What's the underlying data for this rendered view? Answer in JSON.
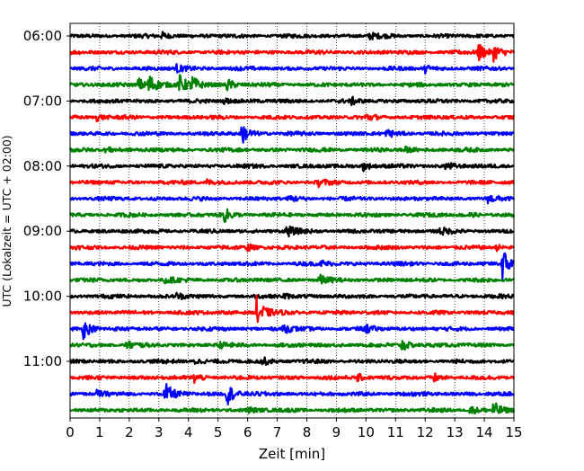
{
  "chart_data": {
    "type": "line",
    "subtype": "seismic helicorder",
    "title": "",
    "xlabel": "Zeit  [min]",
    "ylabel": "UTC (Lokalzeit = UTC + 02:00)",
    "xlim": [
      0,
      15
    ],
    "x_ticks": [
      0,
      1,
      2,
      3,
      4,
      5,
      6,
      7,
      8,
      9,
      10,
      11,
      12,
      13,
      14,
      15
    ],
    "x_tick_labels": [
      "0",
      "1",
      "2",
      "3",
      "4",
      "5",
      "6",
      "7",
      "8",
      "9",
      "10",
      "11",
      "12",
      "13",
      "14",
      "15"
    ],
    "y_tick_labels": [
      "06:00",
      "07:00",
      "08:00",
      "09:00",
      "10:00",
      "11:00"
    ],
    "line_interval_minutes": 15,
    "start_time": "06:00",
    "grid": "vertical dotted",
    "legend": "none",
    "colors_cycle": [
      "#000000",
      "#ff0000",
      "#0000ff",
      "#008000"
    ],
    "traces": [
      {
        "start": "06:00",
        "color": "#000000",
        "events": [
          {
            "t": 3.1,
            "amp": 0.35
          },
          {
            "t": 10.1,
            "amp": 0.35
          }
        ]
      },
      {
        "start": "06:15",
        "color": "#ff0000",
        "events": [
          {
            "t": 13.8,
            "amp": 0.9
          },
          {
            "t": 14.3,
            "amp": 0.8
          }
        ]
      },
      {
        "start": "06:30",
        "color": "#0000ff",
        "events": [
          {
            "t": 3.6,
            "amp": 0.35
          },
          {
            "t": 12,
            "amp": 0.35
          }
        ]
      },
      {
        "start": "06:45",
        "color": "#008000",
        "events": [
          {
            "t": 2.3,
            "amp": 0.7
          },
          {
            "t": 2.65,
            "amp": 1.1
          },
          {
            "t": 3.7,
            "amp": 0.9
          },
          {
            "t": 4.1,
            "amp": 0.85
          },
          {
            "t": 5.3,
            "amp": 0.6
          }
        ]
      },
      {
        "start": "07:00",
        "color": "#000000",
        "events": [
          {
            "t": 5.2,
            "amp": 0.3
          },
          {
            "t": 9.5,
            "amp": 0.3
          }
        ]
      },
      {
        "start": "07:15",
        "color": "#ff0000",
        "events": [
          {
            "t": 0.9,
            "amp": 0.35
          },
          {
            "t": 10,
            "amp": 0.3
          }
        ]
      },
      {
        "start": "07:30",
        "color": "#0000ff",
        "events": [
          {
            "t": 5.8,
            "amp": 1.0
          },
          {
            "t": 10.7,
            "amp": 0.35
          }
        ]
      },
      {
        "start": "07:45",
        "color": "#008000",
        "events": [
          {
            "t": 1.2,
            "amp": 0.35
          },
          {
            "t": 11.2,
            "amp": 0.35
          }
        ]
      },
      {
        "start": "08:00",
        "color": "#000000",
        "events": [
          {
            "t": 9.9,
            "amp": 0.45
          },
          {
            "t": 12.7,
            "amp": 0.4
          }
        ]
      },
      {
        "start": "08:15",
        "color": "#ff0000",
        "events": [
          {
            "t": 4.6,
            "amp": 0.3
          },
          {
            "t": 8.4,
            "amp": 0.3
          }
        ]
      },
      {
        "start": "08:30",
        "color": "#0000ff",
        "events": [
          {
            "t": 7.4,
            "amp": 0.35
          },
          {
            "t": 14.1,
            "amp": 0.35
          }
        ]
      },
      {
        "start": "08:45",
        "color": "#008000",
        "events": [
          {
            "t": 5.2,
            "amp": 0.7
          },
          {
            "t": 13.3,
            "amp": 0.3
          }
        ]
      },
      {
        "start": "09:00",
        "color": "#000000",
        "events": [
          {
            "t": 7.3,
            "amp": 0.6
          },
          {
            "t": 12.5,
            "amp": 0.35
          }
        ]
      },
      {
        "start": "09:15",
        "color": "#ff0000",
        "events": [
          {
            "t": 14.4,
            "amp": 0.3
          },
          {
            "t": 6,
            "amp": 0.3
          }
        ]
      },
      {
        "start": "09:30",
        "color": "#0000ff",
        "events": [
          {
            "t": 14.6,
            "amp": 1.7
          },
          {
            "t": 8.5,
            "amp": 0.3
          }
        ]
      },
      {
        "start": "09:45",
        "color": "#008000",
        "events": [
          {
            "t": 8.4,
            "amp": 0.5
          },
          {
            "t": 3.2,
            "amp": 0.35
          }
        ]
      },
      {
        "start": "10:00",
        "color": "#000000",
        "events": [
          {
            "t": 3.6,
            "amp": 0.35
          },
          {
            "t": 7.2,
            "amp": 0.3
          }
        ]
      },
      {
        "start": "10:15",
        "color": "#ff0000",
        "events": [
          {
            "t": 6.3,
            "amp": 1.6
          }
        ]
      },
      {
        "start": "10:30",
        "color": "#0000ff",
        "events": [
          {
            "t": 0.45,
            "amp": 1.0
          },
          {
            "t": 7.2,
            "amp": 0.5
          },
          {
            "t": 10,
            "amp": 0.35
          }
        ]
      },
      {
        "start": "10:45",
        "color": "#008000",
        "events": [
          {
            "t": 1.9,
            "amp": 0.4
          },
          {
            "t": 11.2,
            "amp": 0.65
          },
          {
            "t": 5,
            "amp": 0.3
          }
        ]
      },
      {
        "start": "11:00",
        "color": "#000000",
        "events": [
          {
            "t": 4.2,
            "amp": 0.3
          },
          {
            "t": 6.5,
            "amp": 0.35
          }
        ]
      },
      {
        "start": "11:15",
        "color": "#ff0000",
        "events": [
          {
            "t": 4.2,
            "amp": 0.45
          },
          {
            "t": 9.7,
            "amp": 0.4
          },
          {
            "t": 12.3,
            "amp": 0.35
          }
        ]
      },
      {
        "start": "11:30",
        "color": "#0000ff",
        "events": [
          {
            "t": 3.2,
            "amp": 1.1
          },
          {
            "t": 5.3,
            "amp": 1.1
          },
          {
            "t": 0.9,
            "amp": 0.3
          }
        ]
      },
      {
        "start": "11:45",
        "color": "#008000",
        "events": [
          {
            "t": 14.3,
            "amp": 0.8
          },
          {
            "t": 13.5,
            "amp": 0.45
          },
          {
            "t": 6,
            "amp": 0.3
          }
        ]
      }
    ]
  }
}
